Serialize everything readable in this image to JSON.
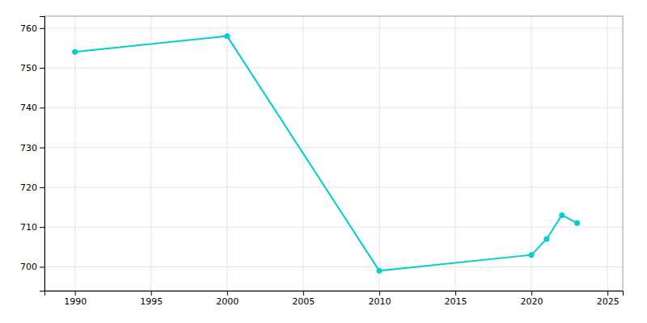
{
  "chart_data": {
    "type": "line",
    "x": [
      1990,
      2000,
      2010,
      2020,
      2021,
      2022,
      2023
    ],
    "values": [
      754,
      758,
      699,
      703,
      707,
      713,
      711
    ],
    "color": "#00CED1",
    "marker": "circle",
    "xlim": [
      1988,
      2026
    ],
    "ylim": [
      694,
      763
    ],
    "xticks": [
      1990,
      1995,
      2000,
      2005,
      2010,
      2015,
      2020,
      2025
    ],
    "yticks": [
      700,
      710,
      720,
      730,
      740,
      750,
      760
    ],
    "grid": true
  }
}
